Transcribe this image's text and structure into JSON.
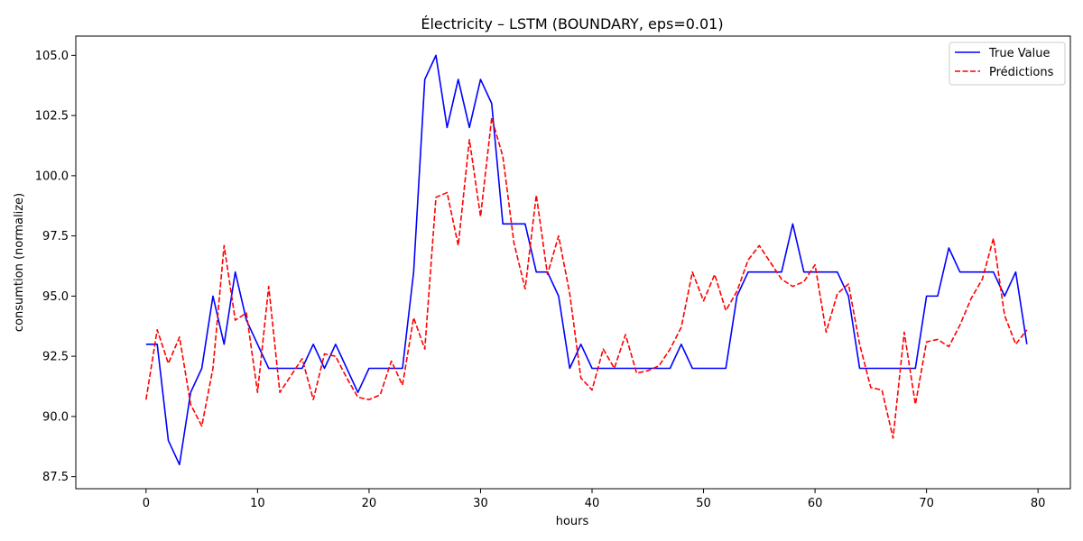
{
  "chart_data": {
    "type": "line",
    "title": "Électricity – LSTM (BOUNDARY, eps=0.01)",
    "xlabel": "hours",
    "ylabel": "consumtion (normalize)",
    "xlim": [
      -6.3,
      82.9
    ],
    "ylim": [
      87.0,
      105.8
    ],
    "xticks": [
      0,
      10,
      20,
      30,
      40,
      50,
      60,
      70,
      80
    ],
    "yticks": [
      87.5,
      90.0,
      92.5,
      95.0,
      97.5,
      100.0,
      102.5,
      105.0
    ],
    "ytick_labels": [
      "87.5",
      "90.0",
      "92.5",
      "95.0",
      "97.5",
      "100.0",
      "102.5",
      "105.0"
    ],
    "legend_position": "top-right",
    "grid": false,
    "series": [
      {
        "name": "True Value",
        "color": "#0000ff",
        "style": "solid",
        "values": [
          93,
          93,
          89,
          88,
          91,
          92,
          95,
          93,
          96,
          94,
          93,
          92,
          92,
          92,
          92,
          93,
          92,
          93,
          92,
          91,
          92,
          92,
          92,
          92,
          96,
          104,
          105,
          102,
          104,
          102,
          104,
          103,
          98,
          98,
          98,
          96,
          96,
          95,
          92,
          93,
          92,
          92,
          92,
          92,
          92,
          92,
          92,
          92,
          93,
          92,
          92,
          92,
          92,
          95,
          96,
          96,
          96,
          96,
          98,
          96,
          96,
          96,
          96,
          95,
          92,
          92,
          92,
          92,
          92,
          92,
          95,
          95,
          97,
          96,
          96,
          96,
          96,
          95,
          96,
          93
        ]
      },
      {
        "name": "Prédictions",
        "color": "#ff0000",
        "style": "dashed",
        "values": [
          90.7,
          93.6,
          92.2,
          93.3,
          90.5,
          89.6,
          92.0,
          97.1,
          94.0,
          94.3,
          91.0,
          95.4,
          91.0,
          91.7,
          92.4,
          90.7,
          92.6,
          92.5,
          91.6,
          90.8,
          90.7,
          90.9,
          92.3,
          91.3,
          94.1,
          92.8,
          99.1,
          99.3,
          97.1,
          101.5,
          98.3,
          102.4,
          100.8,
          97.2,
          95.3,
          99.2,
          95.9,
          97.5,
          95.1,
          91.6,
          91.1,
          92.8,
          92.0,
          93.4,
          91.8,
          91.9,
          92.1,
          92.8,
          93.7,
          96.0,
          94.8,
          95.9,
          94.4,
          95.2,
          96.5,
          97.1,
          96.4,
          95.7,
          95.4,
          95.6,
          96.3,
          93.5,
          95.1,
          95.5,
          93.0,
          91.2,
          91.1,
          89.1,
          93.5,
          90.5,
          93.1,
          93.2,
          92.9,
          93.8,
          94.9,
          95.7,
          97.4,
          94.2,
          93.0,
          93.6
        ]
      }
    ]
  }
}
